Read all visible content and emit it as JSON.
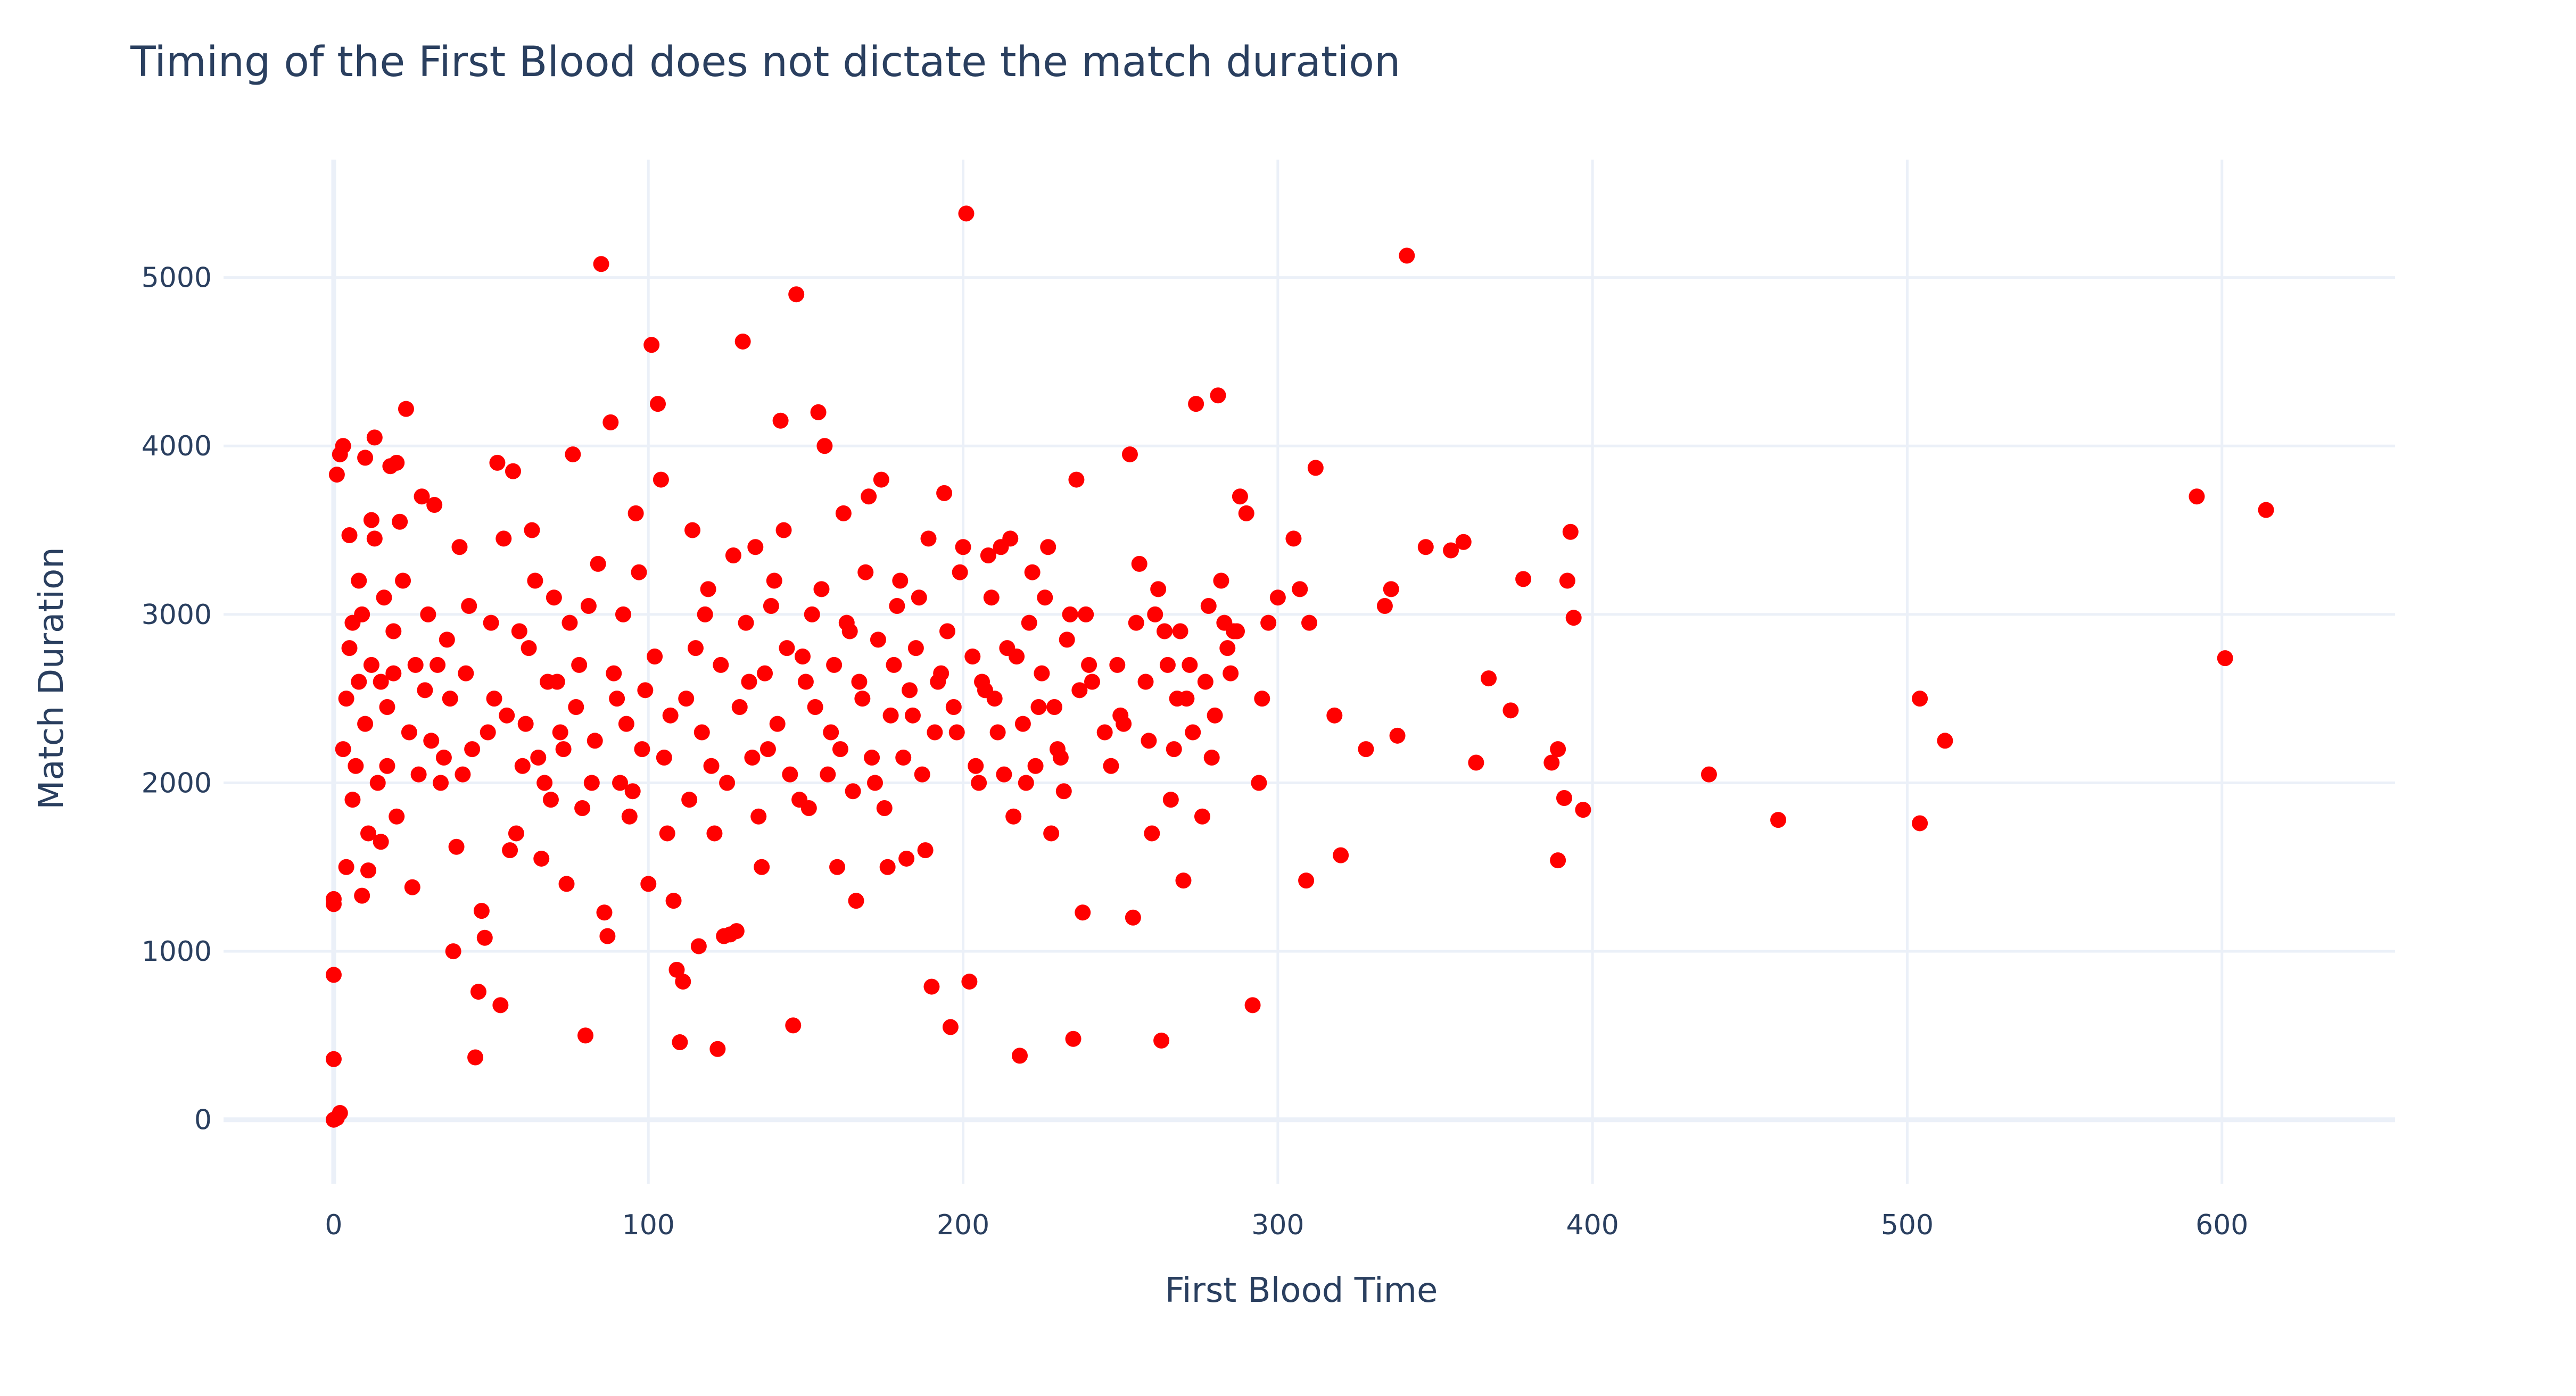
{
  "chart_data": {
    "type": "scatter",
    "title": "Timing of the First Blood does not dictate the match duration",
    "xlabel": "First Blood Time",
    "ylabel": "Match Duration",
    "xlim": [
      -35,
      655
    ],
    "ylim": [
      -380,
      5700
    ],
    "x_ticks": [
      0,
      100,
      200,
      300,
      400,
      500,
      600
    ],
    "y_ticks": [
      0,
      1000,
      2000,
      3000,
      4000,
      5000
    ],
    "x_tick_labels": [
      "0",
      "100",
      "200",
      "300",
      "400",
      "500",
      "600"
    ],
    "y_tick_labels": [
      "0",
      "1000",
      "2000",
      "3000",
      "4000",
      "5000"
    ],
    "grid": true,
    "legend": "none",
    "marker_color": "#ff0000",
    "points": [
      [
        0,
        0
      ],
      [
        1,
        10
      ],
      [
        2,
        40
      ],
      [
        0,
        360
      ],
      [
        0,
        860
      ],
      [
        0,
        1280
      ],
      [
        0,
        1310
      ],
      [
        1,
        3830
      ],
      [
        2,
        3950
      ],
      [
        3,
        4000
      ],
      [
        5,
        3470
      ],
      [
        8,
        3200
      ],
      [
        10,
        3930
      ],
      [
        12,
        3560
      ],
      [
        13,
        4050
      ],
      [
        18,
        3880
      ],
      [
        20,
        3900
      ],
      [
        22,
        3200
      ],
      [
        23,
        4220
      ],
      [
        3,
        2200
      ],
      [
        4,
        2500
      ],
      [
        5,
        2800
      ],
      [
        6,
        1900
      ],
      [
        7,
        2100
      ],
      [
        8,
        2600
      ],
      [
        9,
        3000
      ],
      [
        10,
        2350
      ],
      [
        11,
        1700
      ],
      [
        12,
        2700
      ],
      [
        14,
        2000
      ],
      [
        15,
        1650
      ],
      [
        16,
        3100
      ],
      [
        17,
        2450
      ],
      [
        19,
        2900
      ],
      [
        20,
        1800
      ],
      [
        24,
        2300
      ],
      [
        25,
        1380
      ],
      [
        26,
        2700
      ],
      [
        28,
        3700
      ],
      [
        30,
        3000
      ],
      [
        32,
        3650
      ],
      [
        34,
        2000
      ],
      [
        36,
        2850
      ],
      [
        38,
        1000
      ],
      [
        39,
        1620
      ],
      [
        40,
        3400
      ],
      [
        42,
        2650
      ],
      [
        44,
        2200
      ],
      [
        45,
        370
      ],
      [
        46,
        760
      ],
      [
        47,
        1240
      ],
      [
        48,
        1080
      ],
      [
        50,
        2950
      ],
      [
        52,
        3900
      ],
      [
        53,
        680
      ],
      [
        55,
        2400
      ],
      [
        57,
        3850
      ],
      [
        58,
        1700
      ],
      [
        60,
        2100
      ],
      [
        62,
        2800
      ],
      [
        64,
        3200
      ],
      [
        66,
        1550
      ],
      [
        68,
        2600
      ],
      [
        70,
        3100
      ],
      [
        72,
        2300
      ],
      [
        74,
        1400
      ],
      [
        76,
        3950
      ],
      [
        78,
        2700
      ],
      [
        80,
        500
      ],
      [
        82,
        2000
      ],
      [
        84,
        3300
      ],
      [
        85,
        5080
      ],
      [
        86,
        1230
      ],
      [
        87,
        1090
      ],
      [
        88,
        4140
      ],
      [
        90,
        2500
      ],
      [
        92,
        3000
      ],
      [
        94,
        1800
      ],
      [
        96,
        3600
      ],
      [
        98,
        2200
      ],
      [
        100,
        1400
      ],
      [
        101,
        4600
      ],
      [
        102,
        2750
      ],
      [
        103,
        4250
      ],
      [
        104,
        3800
      ],
      [
        106,
        1700
      ],
      [
        108,
        1300
      ],
      [
        109,
        890
      ],
      [
        110,
        460
      ],
      [
        111,
        820
      ],
      [
        112,
        2500
      ],
      [
        114,
        3500
      ],
      [
        116,
        1030
      ],
      [
        118,
        3000
      ],
      [
        120,
        2100
      ],
      [
        121,
        1700
      ],
      [
        122,
        420
      ],
      [
        124,
        1090
      ],
      [
        126,
        1100
      ],
      [
        128,
        1120
      ],
      [
        130,
        4620
      ],
      [
        132,
        2600
      ],
      [
        134,
        3400
      ],
      [
        136,
        1500
      ],
      [
        138,
        2200
      ],
      [
        140,
        3200
      ],
      [
        142,
        4150
      ],
      [
        144,
        2800
      ],
      [
        146,
        560
      ],
      [
        147,
        4900
      ],
      [
        148,
        1900
      ],
      [
        150,
        2600
      ],
      [
        152,
        3000
      ],
      [
        154,
        4200
      ],
      [
        156,
        4000
      ],
      [
        158,
        2300
      ],
      [
        160,
        1500
      ],
      [
        162,
        3600
      ],
      [
        164,
        2900
      ],
      [
        166,
        1300
      ],
      [
        168,
        2500
      ],
      [
        170,
        3700
      ],
      [
        172,
        2000
      ],
      [
        174,
        3800
      ],
      [
        176,
        1500
      ],
      [
        178,
        2700
      ],
      [
        180,
        3200
      ],
      [
        182,
        1550
      ],
      [
        184,
        2400
      ],
      [
        186,
        3100
      ],
      [
        188,
        1600
      ],
      [
        190,
        790
      ],
      [
        192,
        2600
      ],
      [
        194,
        3720
      ],
      [
        195,
        2900
      ],
      [
        196,
        550
      ],
      [
        198,
        2300
      ],
      [
        200,
        3400
      ],
      [
        201,
        5380
      ],
      [
        202,
        820
      ],
      [
        204,
        2100
      ],
      [
        206,
        2600
      ],
      [
        208,
        3350
      ],
      [
        210,
        2500
      ],
      [
        212,
        3400
      ],
      [
        214,
        2800
      ],
      [
        216,
        1800
      ],
      [
        218,
        380
      ],
      [
        220,
        2000
      ],
      [
        222,
        3250
      ],
      [
        224,
        2450
      ],
      [
        226,
        3100
      ],
      [
        228,
        1700
      ],
      [
        230,
        2200
      ],
      [
        232,
        1950
      ],
      [
        234,
        3000
      ],
      [
        235,
        480
      ],
      [
        236,
        3800
      ],
      [
        238,
        1230
      ],
      [
        240,
        2700
      ],
      [
        245,
        2300
      ],
      [
        250,
        2400
      ],
      [
        253,
        3950
      ],
      [
        254,
        1200
      ],
      [
        256,
        3300
      ],
      [
        258,
        2600
      ],
      [
        260,
        1700
      ],
      [
        262,
        3150
      ],
      [
        263,
        470
      ],
      [
        264,
        2900
      ],
      [
        266,
        1900
      ],
      [
        268,
        2500
      ],
      [
        270,
        1420
      ],
      [
        272,
        2700
      ],
      [
        274,
        4250
      ],
      [
        276,
        1800
      ],
      [
        278,
        3050
      ],
      [
        280,
        2400
      ],
      [
        281,
        4300
      ],
      [
        282,
        3200
      ],
      [
        284,
        2800
      ],
      [
        286,
        2900
      ],
      [
        288,
        3700
      ],
      [
        290,
        3600
      ],
      [
        292,
        680
      ],
      [
        294,
        2000
      ],
      [
        295,
        2500
      ],
      [
        297,
        2950
      ],
      [
        300,
        3100
      ],
      [
        305,
        3450
      ],
      [
        307,
        3150
      ],
      [
        309,
        1420
      ],
      [
        310,
        2950
      ],
      [
        312,
        3870
      ],
      [
        318,
        2400
      ],
      [
        320,
        1570
      ],
      [
        328,
        2200
      ],
      [
        334,
        3050
      ],
      [
        336,
        3150
      ],
      [
        338,
        2280
      ],
      [
        341,
        5130
      ],
      [
        347,
        3400
      ],
      [
        355,
        3380
      ],
      [
        359,
        3430
      ],
      [
        363,
        2120
      ],
      [
        367,
        2620
      ],
      [
        374,
        2430
      ],
      [
        378,
        3210
      ],
      [
        387,
        2120
      ],
      [
        389,
        1540
      ],
      [
        389,
        2200
      ],
      [
        391,
        1910
      ],
      [
        392,
        3200
      ],
      [
        393,
        3490
      ],
      [
        394,
        2980
      ],
      [
        397,
        1840
      ],
      [
        437,
        2050
      ],
      [
        459,
        1780
      ],
      [
        504,
        2500
      ],
      [
        504,
        1760
      ],
      [
        512,
        2250
      ],
      [
        592,
        3700
      ],
      [
        601,
        2740
      ],
      [
        614,
        3620
      ],
      [
        4,
        1500
      ],
      [
        6,
        2950
      ],
      [
        9,
        1330
      ],
      [
        11,
        1480
      ],
      [
        13,
        3450
      ],
      [
        15,
        2600
      ],
      [
        17,
        2100
      ],
      [
        19,
        2650
      ],
      [
        21,
        3550
      ],
      [
        27,
        2050
      ],
      [
        29,
        2550
      ],
      [
        31,
        2250
      ],
      [
        33,
        2700
      ],
      [
        35,
        2150
      ],
      [
        37,
        2500
      ],
      [
        41,
        2050
      ],
      [
        43,
        3050
      ],
      [
        49,
        2300
      ],
      [
        51,
        2500
      ],
      [
        54,
        3450
      ],
      [
        56,
        1600
      ],
      [
        59,
        2900
      ],
      [
        61,
        2350
      ],
      [
        63,
        3500
      ],
      [
        65,
        2150
      ],
      [
        67,
        2000
      ],
      [
        69,
        1900
      ],
      [
        71,
        2600
      ],
      [
        73,
        2200
      ],
      [
        75,
        2950
      ],
      [
        77,
        2450
      ],
      [
        79,
        1850
      ],
      [
        81,
        3050
      ],
      [
        83,
        2250
      ],
      [
        89,
        2650
      ],
      [
        91,
        2000
      ],
      [
        93,
        2350
      ],
      [
        95,
        1950
      ],
      [
        97,
        3250
      ],
      [
        99,
        2550
      ],
      [
        105,
        2150
      ],
      [
        107,
        2400
      ],
      [
        113,
        1900
      ],
      [
        115,
        2800
      ],
      [
        117,
        2300
      ],
      [
        119,
        3150
      ],
      [
        123,
        2700
      ],
      [
        125,
        2000
      ],
      [
        127,
        3350
      ],
      [
        129,
        2450
      ],
      [
        131,
        2950
      ],
      [
        133,
        2150
      ],
      [
        135,
        1800
      ],
      [
        137,
        2650
      ],
      [
        139,
        3050
      ],
      [
        141,
        2350
      ],
      [
        143,
        3500
      ],
      [
        145,
        2050
      ],
      [
        149,
        2750
      ],
      [
        151,
        1850
      ],
      [
        153,
        2450
      ],
      [
        155,
        3150
      ],
      [
        157,
        2050
      ],
      [
        159,
        2700
      ],
      [
        161,
        2200
      ],
      [
        163,
        2950
      ],
      [
        165,
        1950
      ],
      [
        167,
        2600
      ],
      [
        169,
        3250
      ],
      [
        171,
        2150
      ],
      [
        173,
        2850
      ],
      [
        175,
        1850
      ],
      [
        177,
        2400
      ],
      [
        179,
        3050
      ],
      [
        181,
        2150
      ],
      [
        183,
        2550
      ],
      [
        185,
        2800
      ],
      [
        187,
        2050
      ],
      [
        189,
        3450
      ],
      [
        191,
        2300
      ],
      [
        193,
        2650
      ],
      [
        197,
        2450
      ],
      [
        199,
        3250
      ],
      [
        203,
        2750
      ],
      [
        205,
        2000
      ],
      [
        207,
        2550
      ],
      [
        209,
        3100
      ],
      [
        211,
        2300
      ],
      [
        213,
        2050
      ],
      [
        215,
        3450
      ],
      [
        217,
        2750
      ],
      [
        219,
        2350
      ],
      [
        221,
        2950
      ],
      [
        223,
        2100
      ],
      [
        225,
        2650
      ],
      [
        227,
        3400
      ],
      [
        229,
        2450
      ],
      [
        231,
        2150
      ],
      [
        233,
        2850
      ],
      [
        237,
        2550
      ],
      [
        239,
        3000
      ],
      [
        241,
        2600
      ],
      [
        247,
        2100
      ],
      [
        249,
        2700
      ],
      [
        251,
        2350
      ],
      [
        255,
        2950
      ],
      [
        259,
        2250
      ],
      [
        261,
        3000
      ],
      [
        265,
        2700
      ],
      [
        267,
        2200
      ],
      [
        269,
        2900
      ],
      [
        271,
        2500
      ],
      [
        273,
        2300
      ],
      [
        277,
        2600
      ],
      [
        279,
        2150
      ],
      [
        283,
        2950
      ],
      [
        285,
        2650
      ],
      [
        287,
        2900
      ]
    ]
  }
}
